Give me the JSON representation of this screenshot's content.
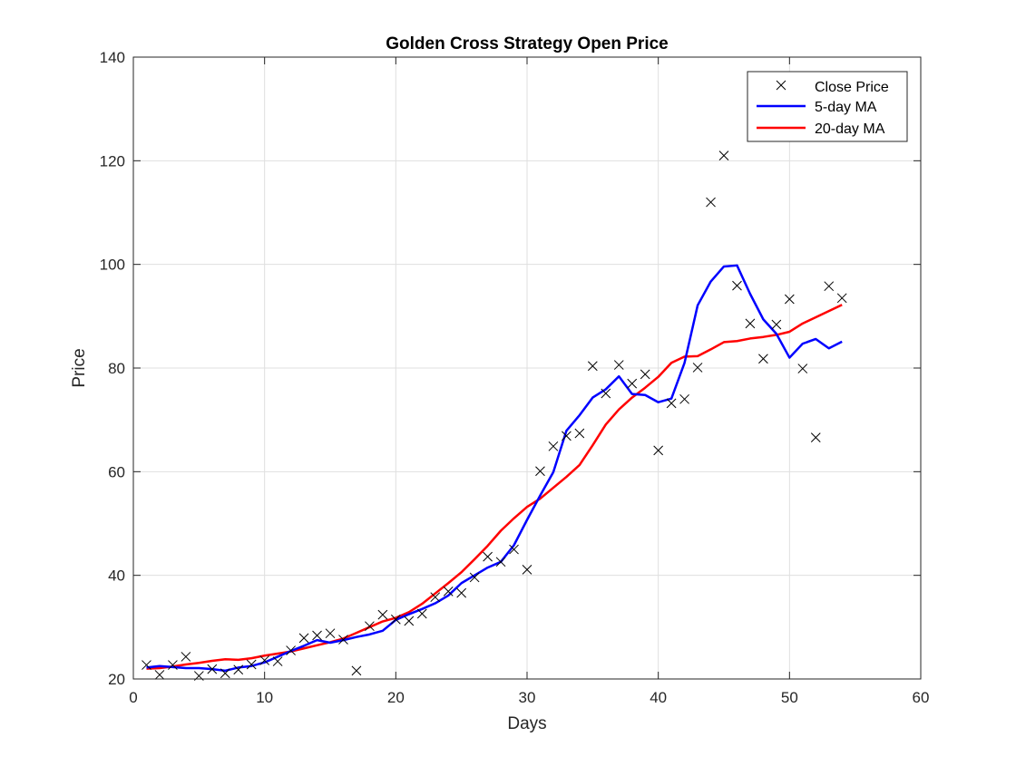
{
  "chart_data": {
    "type": "line",
    "title": "Golden Cross Strategy Open Price",
    "xlabel": "Days",
    "ylabel": "Price",
    "xlim": [
      0,
      60
    ],
    "ylim": [
      20,
      140
    ],
    "xticks": [
      0,
      10,
      20,
      30,
      40,
      50,
      60
    ],
    "yticks": [
      20,
      40,
      60,
      80,
      100,
      120,
      140
    ],
    "grid": true,
    "legend_position": "top-right",
    "x": [
      1,
      2,
      3,
      4,
      5,
      6,
      7,
      8,
      9,
      10,
      11,
      12,
      13,
      14,
      15,
      16,
      17,
      18,
      19,
      20,
      21,
      22,
      23,
      24,
      25,
      26,
      27,
      28,
      29,
      30,
      31,
      32,
      33,
      34,
      35,
      36,
      37,
      38,
      39,
      40,
      41,
      42,
      43,
      44,
      45,
      46,
      47,
      48,
      49,
      50,
      51,
      52,
      53,
      54
    ],
    "series": [
      {
        "name": "Close Price",
        "kind": "markers",
        "marker": "x",
        "color": "#000000",
        "values": [
          22.7,
          20.8,
          22.7,
          24.3,
          20.6,
          21.9,
          21.1,
          21.8,
          22.8,
          23.6,
          23.4,
          25.5,
          27.9,
          28.4,
          28.8,
          27.6,
          21.6,
          30.2,
          32.4,
          31.5,
          31.2,
          32.6,
          35.8,
          36.9,
          36.6,
          39.6,
          43.6,
          42.6,
          45.0,
          41.1,
          60.1,
          64.9,
          66.9,
          67.4,
          80.4,
          75.1,
          80.6,
          77.0,
          78.8,
          64.1,
          73.2,
          74.0,
          80.1,
          112.0,
          121.0,
          95.9,
          88.6,
          81.8,
          88.4,
          93.3,
          79.9,
          66.6,
          95.8,
          93.5
        ]
      },
      {
        "name": "5-day MA",
        "kind": "line",
        "color": "#0000ff",
        "values": [
          22.2,
          22.5,
          22.3,
          22.1,
          22.1,
          21.9,
          21.6,
          22.2,
          22.5,
          23.2,
          24.3,
          25.4,
          26.4,
          27.5,
          27.0,
          27.5,
          28.1,
          28.6,
          29.3,
          31.4,
          32.5,
          33.5,
          34.6,
          36.1,
          38.5,
          40.0,
          41.5,
          42.6,
          45.8,
          50.7,
          55.4,
          59.9,
          67.9,
          70.9,
          74.3,
          75.9,
          78.4,
          75.0,
          74.8,
          73.4,
          74.1,
          81.0,
          92.1,
          96.7,
          99.6,
          99.8,
          94.3,
          89.4,
          86.6,
          82.0,
          84.7,
          85.6,
          83.8,
          85.1
        ]
      },
      {
        "name": "20-day MA",
        "kind": "line",
        "color": "#ff0000",
        "values": [
          22.0,
          22.1,
          22.4,
          22.8,
          23.1,
          23.5,
          23.8,
          23.7,
          24.0,
          24.5,
          24.9,
          25.3,
          25.9,
          26.5,
          27.1,
          27.8,
          28.9,
          30.0,
          31.1,
          31.8,
          32.9,
          34.5,
          36.5,
          38.5,
          40.6,
          43.1,
          45.7,
          48.6,
          51.0,
          53.2,
          54.8,
          56.9,
          59.0,
          61.3,
          65.1,
          69.1,
          72.0,
          74.3,
          76.2,
          78.3,
          81.0,
          82.2,
          82.3,
          83.6,
          85.0,
          85.2,
          85.7,
          86.0,
          86.4,
          87.0,
          88.6,
          89.8,
          91.0,
          92.2
        ]
      }
    ]
  }
}
